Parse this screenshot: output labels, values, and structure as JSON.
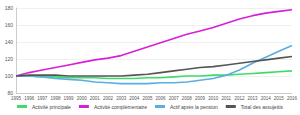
{
  "chart_data": {
    "type": "line",
    "categories": [
      "1995",
      "1996",
      "1997",
      "1998",
      "1999",
      "2000",
      "2001",
      "2002",
      "2003",
      "2004",
      "2005",
      "2006",
      "2007",
      "2008",
      "2009",
      "2010",
      "2011",
      "2012",
      "2013",
      "2014",
      "2015",
      "2016"
    ],
    "series": [
      {
        "name": "Activité principale",
        "color": "#3ddc6a",
        "values": [
          100,
          100,
          99,
          99,
          98,
          98,
          98,
          97,
          97,
          97,
          98,
          98,
          99,
          100,
          100,
          101,
          101,
          102,
          103,
          104,
          105,
          106
        ]
      },
      {
        "name": "Activité complémentaire",
        "color": "#d81fd8",
        "values": [
          100,
          104,
          107,
          110,
          113,
          116,
          119,
          121,
          124,
          129,
          134,
          139,
          144,
          149,
          153,
          157,
          162,
          167,
          171,
          174,
          176,
          178
        ]
      },
      {
        "name": "Actif après la pension",
        "color": "#5aaee0",
        "values": [
          100,
          100,
          99,
          97,
          96,
          95,
          93,
          92,
          91,
          91,
          91,
          92,
          92,
          93,
          95,
          97,
          101,
          107,
          115,
          122,
          129,
          136
        ]
      },
      {
        "name": "Total des assujettis",
        "color": "#555555",
        "values": [
          100,
          101,
          101,
          101,
          100,
          100,
          100,
          100,
          100,
          101,
          102,
          104,
          106,
          108,
          110,
          111,
          113,
          115,
          117,
          119,
          121,
          123
        ]
      }
    ],
    "ylim": [
      80,
      180
    ],
    "yticks": [
      80,
      100,
      120,
      140,
      160,
      180
    ],
    "grid": true,
    "legend": "bottom"
  }
}
